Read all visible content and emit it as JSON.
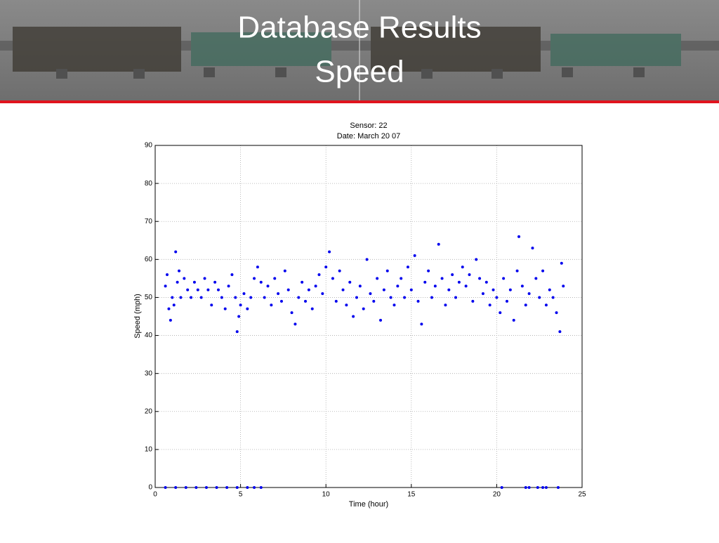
{
  "slide_title": [
    "Database Results",
    "Speed"
  ],
  "chart_data": {
    "type": "scatter",
    "title": [
      "Sensor:  22",
      "Date:  March 20 07"
    ],
    "x_label": "Time (hour)",
    "y_label": "Speed (mph)",
    "color": "#0000ee",
    "grid": true,
    "xlim": [
      0,
      25
    ],
    "xticks": [
      0,
      5,
      10,
      15,
      20,
      25
    ],
    "ylim": [
      0,
      90
    ],
    "yticks": [
      0,
      10,
      20,
      30,
      40,
      50,
      60,
      70,
      80,
      90
    ],
    "x": [
      0.6,
      0.7,
      0.8,
      0.9,
      1.0,
      1.1,
      1.2,
      1.3,
      1.4,
      1.5,
      1.7,
      1.9,
      2.1,
      2.3,
      2.5,
      2.7,
      2.9,
      3.1,
      3.3,
      3.5,
      3.7,
      3.9,
      4.1,
      4.3,
      4.5,
      4.7,
      4.8,
      4.9,
      5.0,
      5.2,
      5.4,
      5.6,
      5.8,
      6.0,
      6.2,
      6.4,
      6.6,
      6.8,
      7.0,
      7.2,
      7.4,
      7.6,
      7.8,
      8.0,
      8.2,
      8.4,
      8.6,
      8.8,
      9.0,
      9.2,
      9.4,
      9.6,
      9.8,
      10.0,
      10.2,
      10.4,
      10.6,
      10.8,
      11.0,
      11.2,
      11.4,
      11.6,
      11.8,
      12.0,
      12.2,
      12.4,
      12.6,
      12.8,
      13.0,
      13.2,
      13.4,
      13.6,
      13.8,
      14.0,
      14.2,
      14.4,
      14.6,
      14.8,
      15.0,
      15.2,
      15.4,
      15.6,
      15.8,
      16.0,
      16.2,
      16.4,
      16.6,
      16.8,
      17.0,
      17.2,
      17.4,
      17.6,
      17.8,
      18.0,
      18.2,
      18.4,
      18.6,
      18.8,
      19.0,
      19.2,
      19.4,
      19.6,
      19.8,
      20.0,
      20.2,
      20.4,
      20.6,
      20.8,
      21.0,
      21.2,
      21.3,
      21.5,
      21.7,
      21.9,
      22.1,
      22.3,
      22.5,
      22.7,
      22.9,
      23.1,
      23.3,
      23.5,
      23.7,
      23.8,
      23.9,
      0.6,
      1.2,
      1.8,
      2.4,
      3.0,
      3.6,
      4.2,
      4.8,
      5.4,
      5.8,
      6.2,
      20.3,
      21.7,
      21.9,
      22.4,
      22.7,
      22.9,
      23.6
    ],
    "values": [
      53,
      56,
      47,
      44,
      50,
      48,
      62,
      54,
      57,
      50,
      55,
      52,
      50,
      54,
      52,
      50,
      55,
      52,
      48,
      54,
      52,
      50,
      47,
      53,
      56,
      50,
      41,
      45,
      48,
      51,
      47,
      50,
      55,
      58,
      54,
      50,
      53,
      48,
      55,
      51,
      49,
      57,
      52,
      46,
      43,
      50,
      54,
      49,
      52,
      47,
      53,
      56,
      51,
      58,
      62,
      55,
      49,
      57,
      52,
      48,
      54,
      45,
      50,
      53,
      47,
      60,
      51,
      49,
      55,
      44,
      52,
      57,
      50,
      48,
      53,
      55,
      50,
      58,
      52,
      61,
      49,
      43,
      54,
      57,
      50,
      53,
      64,
      55,
      48,
      52,
      56,
      50,
      54,
      58,
      53,
      56,
      49,
      60,
      55,
      51,
      54,
      48,
      52,
      50,
      46,
      55,
      49,
      52,
      44,
      57,
      66,
      53,
      48,
      51,
      63,
      55,
      50,
      57,
      48,
      52,
      50,
      46,
      41,
      59,
      53,
      0,
      0,
      0,
      0,
      0,
      0,
      0,
      0,
      0,
      0,
      0,
      0,
      0,
      0,
      0,
      0,
      0,
      0
    ]
  }
}
